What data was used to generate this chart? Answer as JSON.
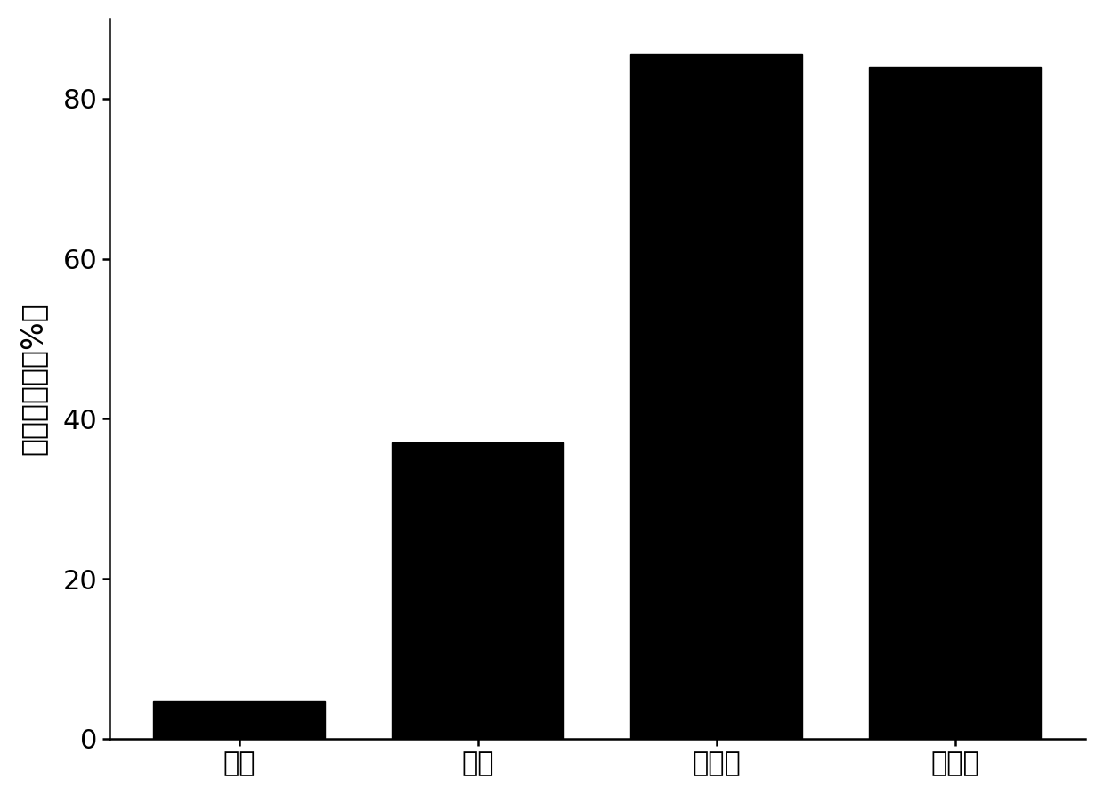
{
  "categories": [
    "甲醇",
    "乙醇",
    "异丙醇",
    "异丁醇"
  ],
  "values": [
    4.8,
    37.0,
    85.5,
    84.0
  ],
  "bar_color": "#000000",
  "ylabel": "胡椒醇产率（%）",
  "ylim": [
    0,
    90
  ],
  "yticks": [
    0,
    20,
    40,
    60,
    80
  ],
  "bar_width": 0.72,
  "background_color": "#ffffff",
  "tick_fontsize": 22,
  "ylabel_fontsize": 24,
  "spine_linewidth": 1.8
}
